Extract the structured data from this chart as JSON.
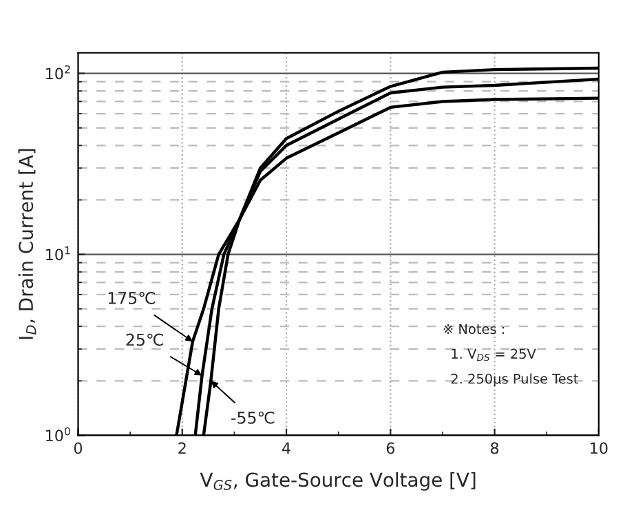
{
  "chart_data": {
    "type": "line",
    "xlabel": "V$_{GS}$, Gate-Source Voltage [V]",
    "ylabel": "I$_{D}$, Drain Current [A]",
    "xlim": [
      0,
      10
    ],
    "xticks": [
      0,
      2,
      4,
      6,
      8,
      10
    ],
    "ylim": [
      1,
      130
    ],
    "yticks": [
      {
        "value": 1,
        "label": "10$^{0}$"
      },
      {
        "value": 10,
        "label": "10$^{1}$"
      },
      {
        "value": 100,
        "label": "10$^{2}$"
      }
    ],
    "log": "y",
    "grid": true,
    "marker": "none",
    "line_style": "solid",
    "series": [
      {
        "color": "#000000",
        "x": [
          1.89,
          2.2,
          2.41,
          2.7,
          3.1,
          3.5,
          4,
          5,
          6,
          7,
          8,
          10
        ],
        "values": [
          1,
          3.3,
          5,
          10,
          15.6,
          25.7,
          34,
          47,
          65,
          70,
          71.8,
          73
        ]
      },
      {
        "color": "#000000",
        "x": [
          2.25,
          2.38,
          2.57,
          2.8,
          3.1,
          3.5,
          4,
          5,
          6,
          7,
          8,
          10
        ],
        "values": [
          1,
          2.14,
          5,
          10,
          15.6,
          28.8,
          40,
          56,
          78,
          84,
          86,
          93
        ]
      },
      {
        "color": "#000000",
        "x": [
          2.41,
          2.55,
          2.7,
          2.88,
          3.1,
          3.5,
          4,
          5,
          6,
          7,
          8,
          10
        ],
        "values": [
          1,
          2,
          5,
          10,
          15.6,
          30,
          43.7,
          61.8,
          84.8,
          101.6,
          105,
          107
        ]
      }
    ],
    "annotations": [
      {
        "text": "175℃",
        "x": 2.2,
        "y": 3.3
      },
      {
        "text": "25℃",
        "x": 2.38,
        "y": 2.14
      },
      {
        "text": "-55℃",
        "x": 2.55,
        "y": 2
      },
      "※ Notes :",
      "1. V$_{DS}$ = 25V",
      "2. 250μs Pulse Test"
    ]
  }
}
